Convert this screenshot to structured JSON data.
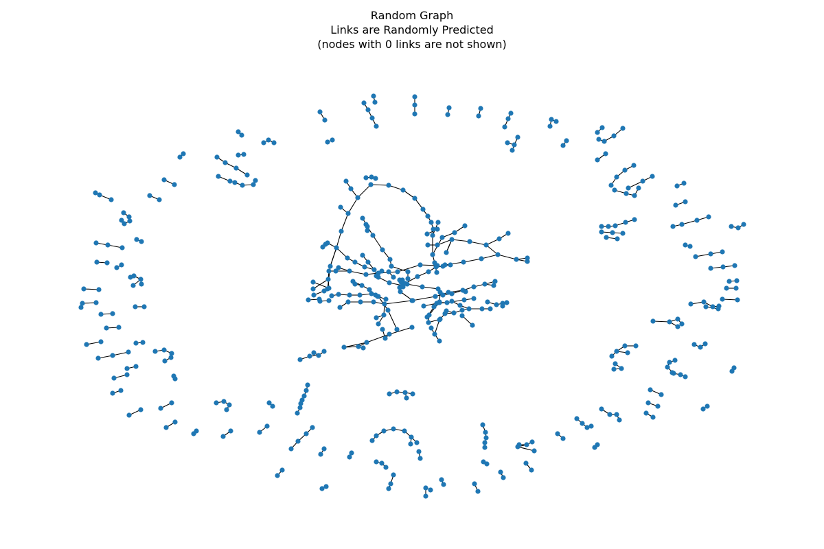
{
  "figure": {
    "title_lines": [
      "Random Graph",
      "Links are Randomly Predicted",
      "(nodes with 0 links are not shown)"
    ]
  },
  "style": {
    "node_color": "#1f77b4",
    "edge_color": "#000000",
    "background": "#ffffff"
  }
}
